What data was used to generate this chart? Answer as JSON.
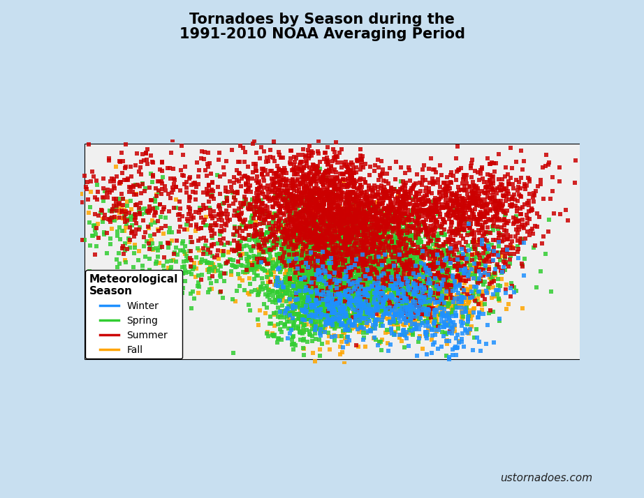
{
  "title_line1": "Tornadoes by Season during the",
  "title_line2": "1991-2010 NOAA Averaging Period",
  "title_fontsize": 15,
  "title_fontweight": "bold",
  "land_color": "#f0f0f0",
  "ocean_color": "#c8dff0",
  "border_color": "#000000",
  "outer_bg": "#c8dff0",
  "legend_title": "Meteorological\nSeason",
  "legend_title_fontsize": 11,
  "legend_fontsize": 10,
  "seasons": [
    "Winter",
    "Spring",
    "Summer",
    "Fall"
  ],
  "season_colors": {
    "Winter": "#1e90ff",
    "Spring": "#32cd32",
    "Summer": "#cc0000",
    "Fall": "#ffa500"
  },
  "season_counts": {
    "Winter": 800,
    "Spring": 3500,
    "Summer": 4000,
    "Fall": 1400
  },
  "watermark": "ustornadoes.com",
  "watermark_fontsize": 11,
  "point_size": 3.5,
  "point_alpha": 0.85,
  "map_extent": [
    -125.5,
    -65.5,
    23.5,
    50.5
  ],
  "random_seed": 42,
  "season_regions": {
    "Summer": [
      {
        "lon_mean": -97,
        "lat_mean": 42,
        "lon_std": 4,
        "lat_std": 2.5,
        "weight": 0.18
      },
      {
        "lon_mean": -94,
        "lat_mean": 38,
        "lon_std": 3,
        "lat_std": 3,
        "weight": 0.15
      },
      {
        "lon_mean": -88,
        "lat_mean": 42,
        "lon_std": 4,
        "lat_std": 2,
        "weight": 0.12
      },
      {
        "lon_mean": -80,
        "lat_mean": 43,
        "lon_std": 4,
        "lat_std": 2,
        "weight": 0.08
      },
      {
        "lon_mean": -75,
        "lat_mean": 43,
        "lon_std": 4,
        "lat_std": 3,
        "weight": 0.07
      },
      {
        "lon_mean": -85,
        "lat_mean": 35,
        "lon_std": 4,
        "lat_std": 3,
        "weight": 0.1
      },
      {
        "lon_mean": -98,
        "lat_mean": 46,
        "lon_std": 4,
        "lat_std": 2,
        "weight": 0.1
      },
      {
        "lon_mean": -105,
        "lat_mean": 40,
        "lon_std": 6,
        "lat_std": 3,
        "weight": 0.08
      },
      {
        "lon_mean": -120,
        "lat_mean": 44,
        "lon_std": 3,
        "lat_std": 3,
        "weight": 0.04
      },
      {
        "lon_mean": -112,
        "lat_mean": 44,
        "lon_std": 4,
        "lat_std": 3,
        "weight": 0.04
      },
      {
        "lon_mean": -78,
        "lat_mean": 38,
        "lon_std": 3,
        "lat_std": 2,
        "weight": 0.04
      }
    ],
    "Spring": [
      {
        "lon_mean": -97,
        "lat_mean": 36,
        "lon_std": 4,
        "lat_std": 3,
        "weight": 0.22
      },
      {
        "lon_mean": -95,
        "lat_mean": 33,
        "lon_std": 3,
        "lat_std": 2.5,
        "weight": 0.12
      },
      {
        "lon_mean": -90,
        "lat_mean": 35,
        "lon_std": 4,
        "lat_std": 3,
        "weight": 0.12
      },
      {
        "lon_mean": -88,
        "lat_mean": 32,
        "lon_std": 4,
        "lat_std": 2.5,
        "weight": 0.1
      },
      {
        "lon_mean": -86,
        "lat_mean": 37,
        "lon_std": 3,
        "lat_std": 2.5,
        "weight": 0.08
      },
      {
        "lon_mean": -94,
        "lat_mean": 38,
        "lon_std": 3,
        "lat_std": 2.5,
        "weight": 0.1
      },
      {
        "lon_mean": -98,
        "lat_mean": 30,
        "lon_std": 3,
        "lat_std": 2,
        "weight": 0.08
      },
      {
        "lon_mean": -80,
        "lat_mean": 35,
        "lon_std": 4,
        "lat_std": 3,
        "weight": 0.06
      },
      {
        "lon_mean": -103,
        "lat_mean": 38,
        "lon_std": 6,
        "lat_std": 3,
        "weight": 0.06
      },
      {
        "lon_mean": -112,
        "lat_mean": 35,
        "lon_std": 4,
        "lat_std": 2,
        "weight": 0.03
      },
      {
        "lon_mean": -120,
        "lat_mean": 40,
        "lon_std": 3,
        "lat_std": 3,
        "weight": 0.03
      }
    ],
    "Fall": [
      {
        "lon_mean": -90,
        "lat_mean": 32,
        "lon_std": 4,
        "lat_std": 3,
        "weight": 0.2
      },
      {
        "lon_mean": -97,
        "lat_mean": 34,
        "lon_std": 4,
        "lat_std": 3,
        "weight": 0.18
      },
      {
        "lon_mean": -86,
        "lat_mean": 32,
        "lon_std": 4,
        "lat_std": 2.5,
        "weight": 0.15
      },
      {
        "lon_mean": -83,
        "lat_mean": 31,
        "lon_std": 3,
        "lat_std": 2,
        "weight": 0.12
      },
      {
        "lon_mean": -95,
        "lat_mean": 30,
        "lon_std": 3,
        "lat_std": 2,
        "weight": 0.1
      },
      {
        "lon_mean": -80,
        "lat_mean": 33,
        "lon_std": 3,
        "lat_std": 2.5,
        "weight": 0.08
      },
      {
        "lon_mean": -94,
        "lat_mean": 38,
        "lon_std": 3,
        "lat_std": 2.5,
        "weight": 0.08
      },
      {
        "lon_mean": -103,
        "lat_mean": 37,
        "lon_std": 6,
        "lat_std": 3,
        "weight": 0.05
      },
      {
        "lon_mean": -112,
        "lat_mean": 35,
        "lon_std": 4,
        "lat_std": 2,
        "weight": 0.02
      },
      {
        "lon_mean": -120,
        "lat_mean": 40,
        "lon_std": 3,
        "lat_std": 3,
        "weight": 0.02
      }
    ],
    "Winter": [
      {
        "lon_mean": -89,
        "lat_mean": 31,
        "lon_std": 4,
        "lat_std": 2.5,
        "weight": 0.22
      },
      {
        "lon_mean": -85,
        "lat_mean": 31,
        "lon_std": 3.5,
        "lat_std": 2,
        "weight": 0.18
      },
      {
        "lon_mean": -92,
        "lat_mean": 30,
        "lon_std": 3.5,
        "lat_std": 1.5,
        "weight": 0.18
      },
      {
        "lon_mean": -96,
        "lat_mean": 30,
        "lon_std": 3,
        "lat_std": 1.5,
        "weight": 0.14
      },
      {
        "lon_mean": -82,
        "lat_mean": 28,
        "lon_std": 2.5,
        "lat_std": 2,
        "weight": 0.12
      },
      {
        "lon_mean": -97,
        "lat_mean": 33,
        "lon_std": 3,
        "lat_std": 2,
        "weight": 0.08
      },
      {
        "lon_mean": -79,
        "lat_mean": 34,
        "lon_std": 3,
        "lat_std": 2,
        "weight": 0.05
      },
      {
        "lon_mean": -77,
        "lat_mean": 36,
        "lon_std": 3,
        "lat_std": 2,
        "weight": 0.03
      }
    ]
  }
}
